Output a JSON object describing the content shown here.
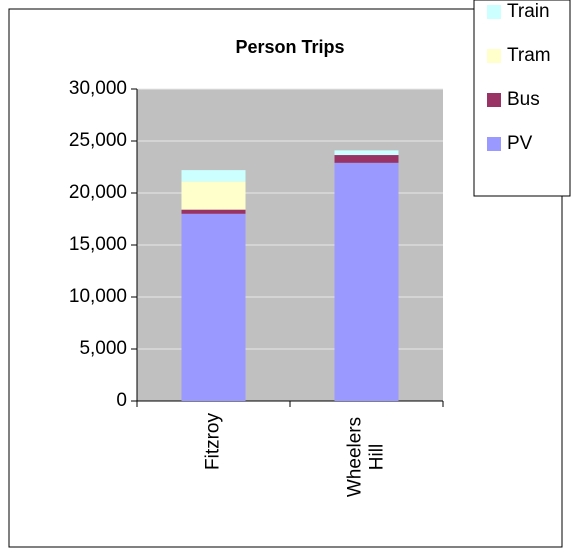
{
  "chart_data": {
    "type": "stacked-bar",
    "title": "Person Trips",
    "categories": [
      "Fitzroy",
      "Wheelers Hill"
    ],
    "series": [
      {
        "name": "PV",
        "color": "#9999ff",
        "values": [
          18000,
          22900
        ]
      },
      {
        "name": "Bus",
        "color": "#993366",
        "values": [
          400,
          750
        ]
      },
      {
        "name": "Tram",
        "color": "#ffffcc",
        "values": [
          2700,
          0
        ]
      },
      {
        "name": "Train",
        "color": "#ccffff",
        "values": [
          1100,
          450
        ]
      }
    ],
    "ylim": [
      0,
      30000
    ],
    "yticks": [
      0,
      {
        "value": 5000,
        "label": "5,000"
      },
      {
        "value": 10000,
        "label": "10,000"
      },
      {
        "value": 15000,
        "label": "15,000"
      },
      {
        "value": 20000,
        "label": "20,000"
      },
      {
        "value": 25000,
        "label": "25,000"
      },
      {
        "value": 30000,
        "label": "30,000"
      }
    ],
    "grid": true,
    "legend": "top-right"
  }
}
